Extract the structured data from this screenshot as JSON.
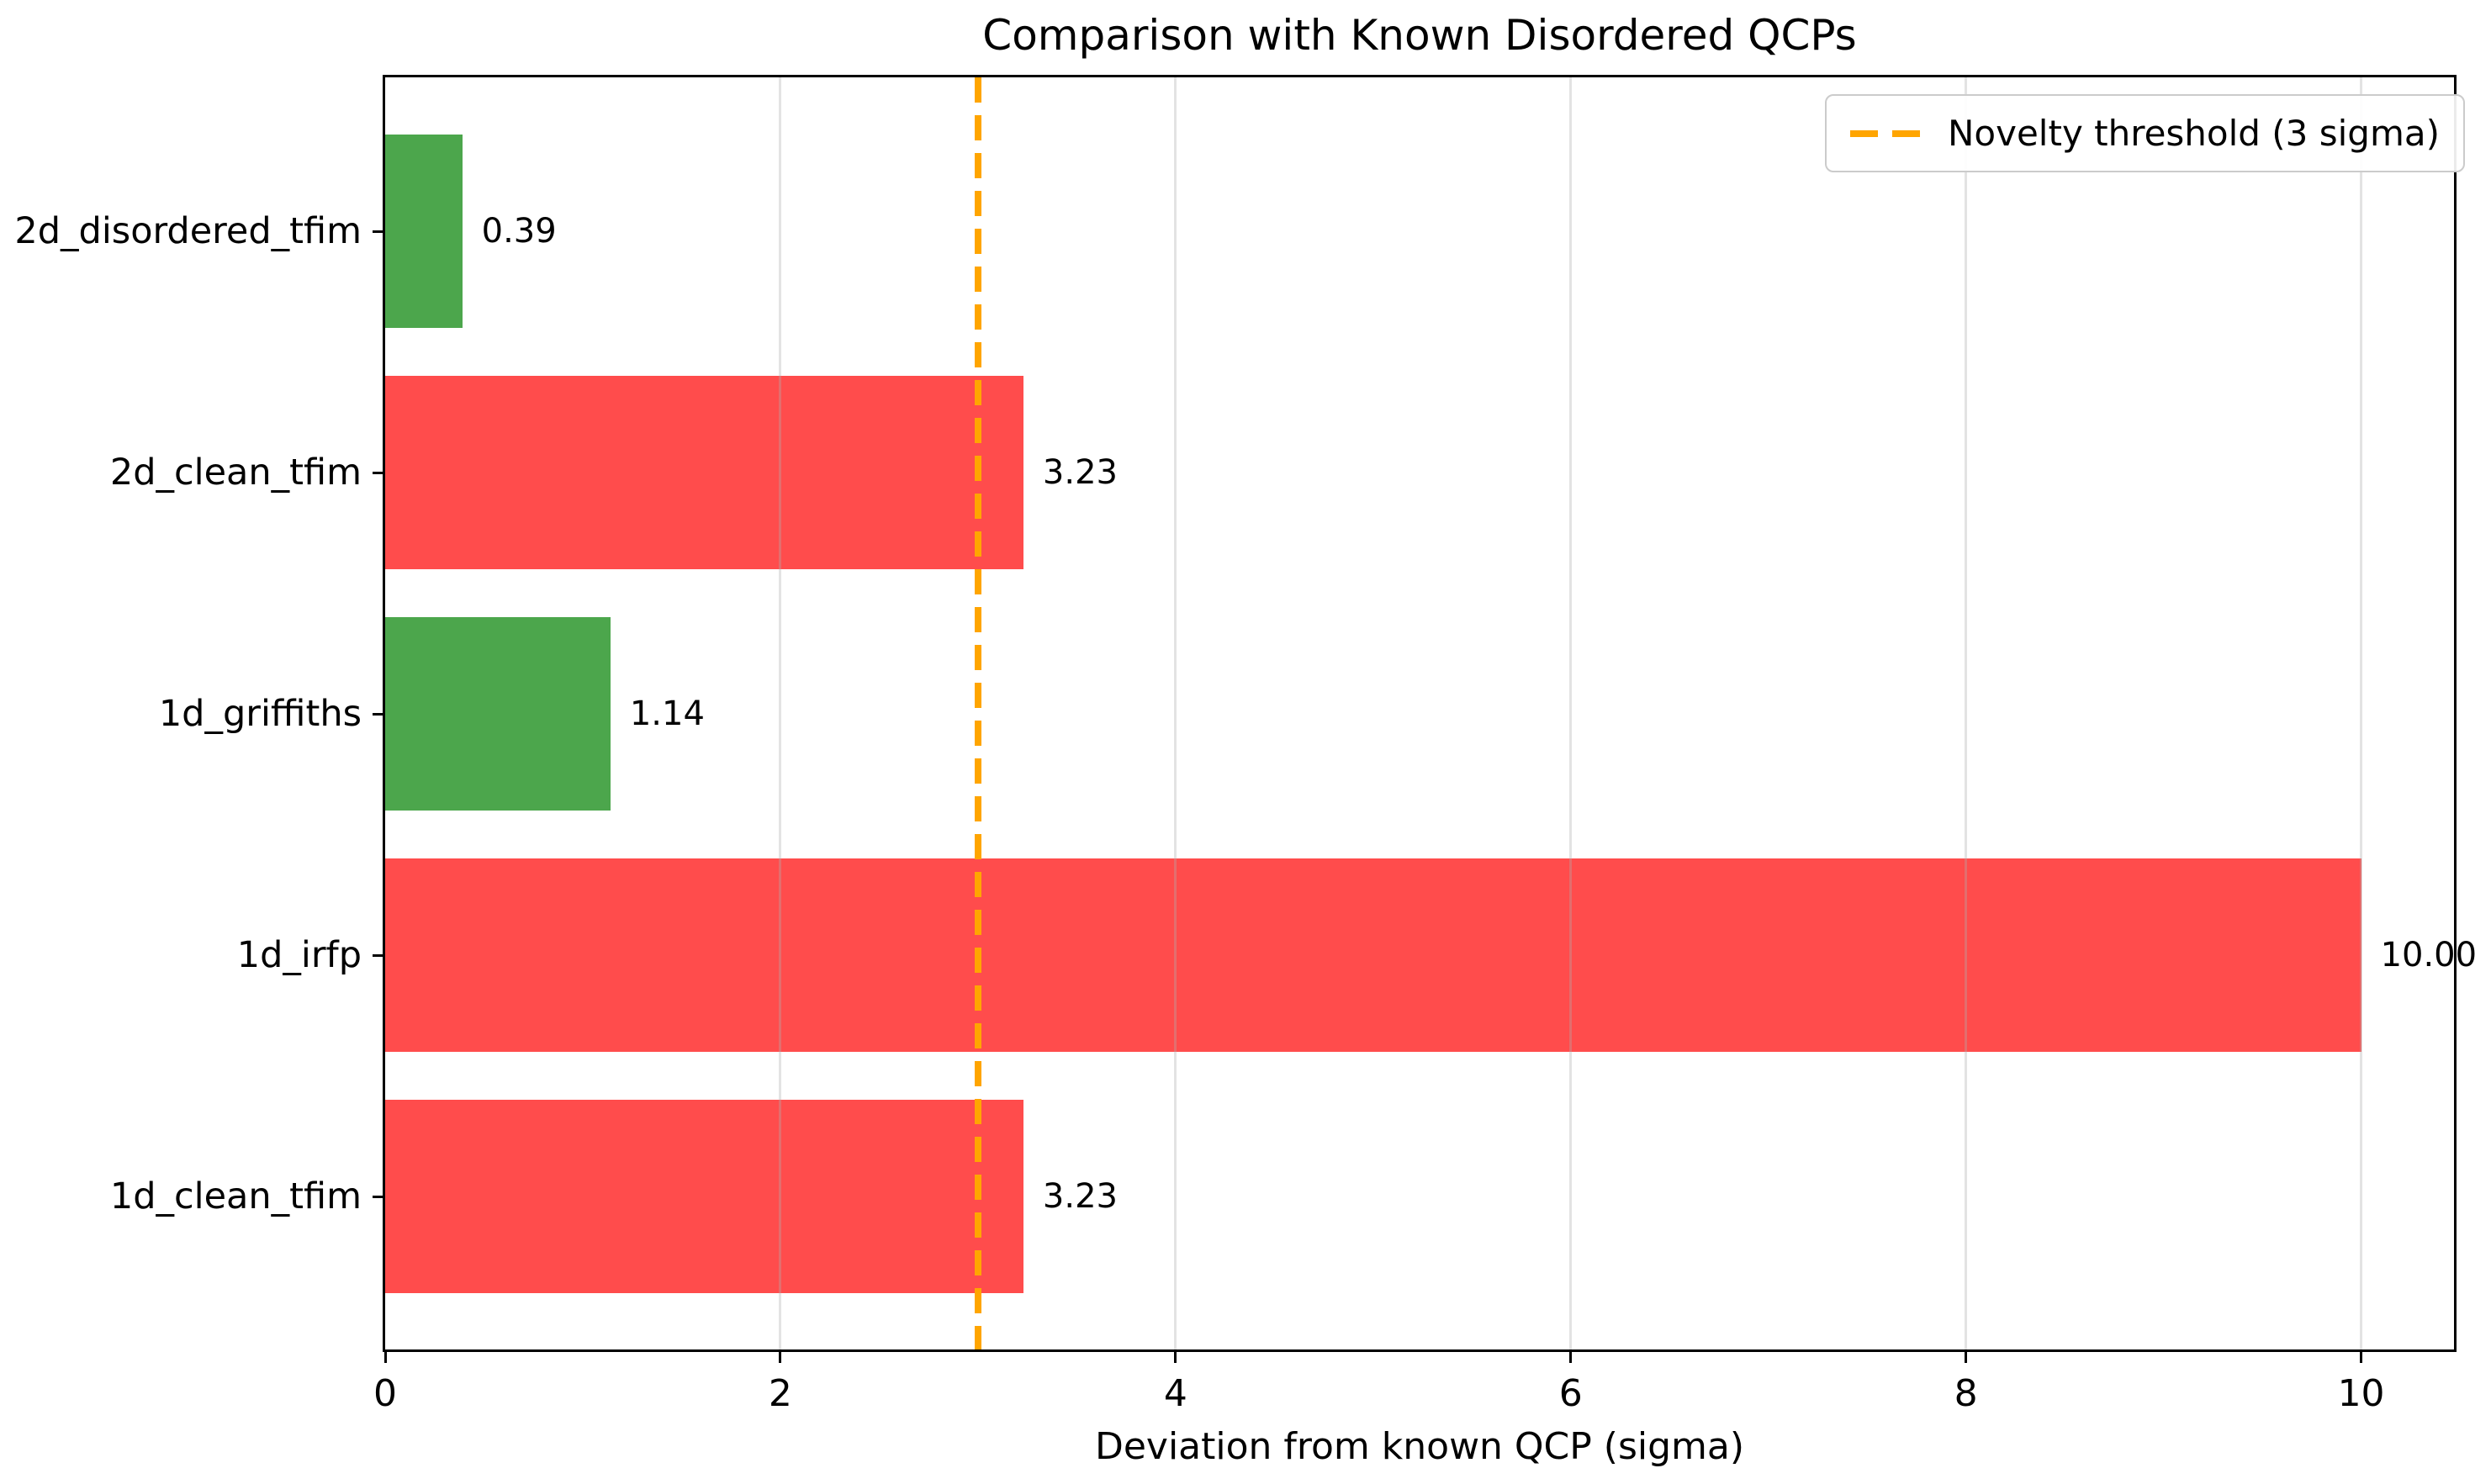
{
  "figure": {
    "background": "#FFFFFF",
    "text_color": "#000000"
  },
  "chart_data": {
    "type": "bar",
    "orientation": "horizontal",
    "title": "Comparison with Known Disordered QCPs",
    "xlabel": "Deviation from known QCP (sigma)",
    "ylabel": "",
    "categories": [
      "2d_disordered_tfim",
      "2d_clean_tfim",
      "1d_griffiths",
      "1d_irfp",
      "1d_clean_tfim"
    ],
    "values": [
      0.39,
      3.23,
      1.14,
      10.0,
      3.23
    ],
    "value_labels": [
      "0.39",
      "3.23",
      "1.14",
      "10.00",
      "3.23"
    ],
    "bar_colors": [
      "rgba(0,128,0,0.7)",
      "rgba(255,0,0,0.7)",
      "rgba(0,128,0,0.7)",
      "rgba(255,0,0,0.7)",
      "rgba(255,0,0,0.7)"
    ],
    "bar_colors_hex_on_white": [
      "#4CA54C",
      "#FF4C4C",
      "#4CA54C",
      "#FF4C4C",
      "#FF4C4C"
    ],
    "xlim": [
      0,
      10.47
    ],
    "xticks": [
      0,
      2,
      4,
      6,
      8,
      10
    ],
    "xtick_labels": [
      "0",
      "2",
      "4",
      "6",
      "8",
      "10"
    ],
    "grid": {
      "axis": "x",
      "visible": true,
      "color_over_white": "#E7E7E7"
    },
    "threshold_line": {
      "value": 3,
      "style": "dashed",
      "color": "#FFA500"
    },
    "legend": {
      "position": "upper right",
      "entries": [
        {
          "label": "Novelty threshold (3 sigma)",
          "color": "#FFA500",
          "style": "dashed"
        }
      ]
    }
  }
}
